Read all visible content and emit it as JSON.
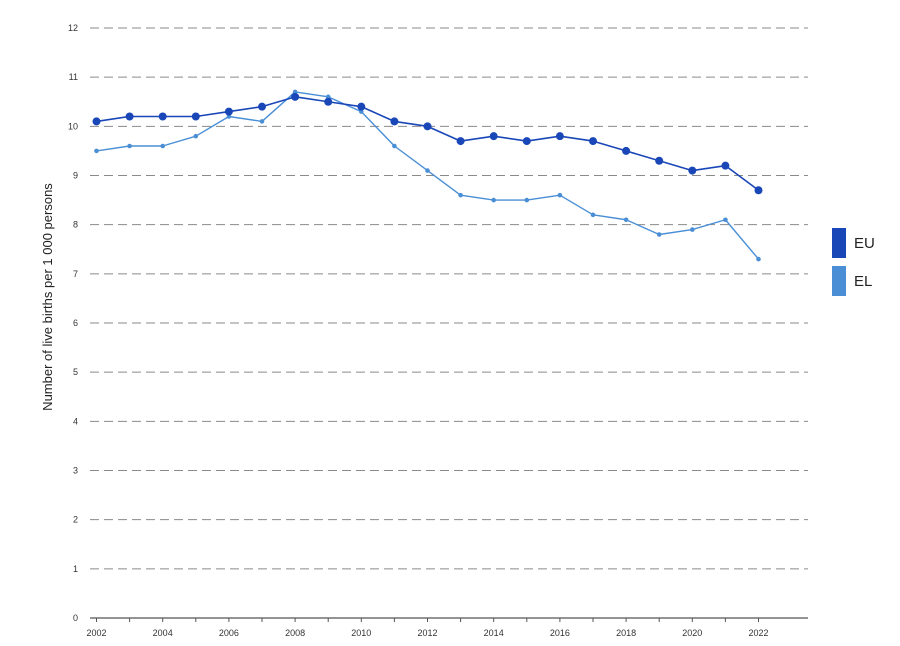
{
  "chart_data": {
    "type": "line",
    "title": "",
    "xlabel": "",
    "ylabel": "Number of live births per 1 000 persons",
    "x": [
      2002,
      2003,
      2004,
      2005,
      2006,
      2007,
      2008,
      2009,
      2010,
      2011,
      2012,
      2013,
      2014,
      2015,
      2016,
      2017,
      2018,
      2019,
      2020,
      2021,
      2022
    ],
    "x_ticks": [
      "2002",
      "2004",
      "2006",
      "2008",
      "2010",
      "2012",
      "2014",
      "2016",
      "2018",
      "2020",
      "2022"
    ],
    "y_ticks": [
      "0",
      "1",
      "2",
      "3",
      "4",
      "5",
      "6",
      "7",
      "8",
      "9",
      "10",
      "11",
      "12"
    ],
    "xlim": [
      2002,
      2023
    ],
    "ylim": [
      0,
      12
    ],
    "grid": true,
    "legend_position": "right",
    "series": [
      {
        "name": "EU",
        "color": "#1a47b8",
        "values": [
          10.1,
          10.2,
          10.2,
          10.2,
          10.3,
          10.4,
          10.6,
          10.5,
          10.4,
          10.1,
          10.0,
          9.7,
          9.8,
          9.7,
          9.8,
          9.7,
          9.5,
          9.3,
          9.1,
          9.2,
          8.7
        ]
      },
      {
        "name": "EL",
        "color": "#4a8fd6",
        "values": [
          9.5,
          9.6,
          9.6,
          9.8,
          10.2,
          10.1,
          10.7,
          10.6,
          10.3,
          9.6,
          9.1,
          8.6,
          8.5,
          8.5,
          8.6,
          8.2,
          8.1,
          7.8,
          7.9,
          8.1,
          7.3
        ]
      }
    ]
  }
}
